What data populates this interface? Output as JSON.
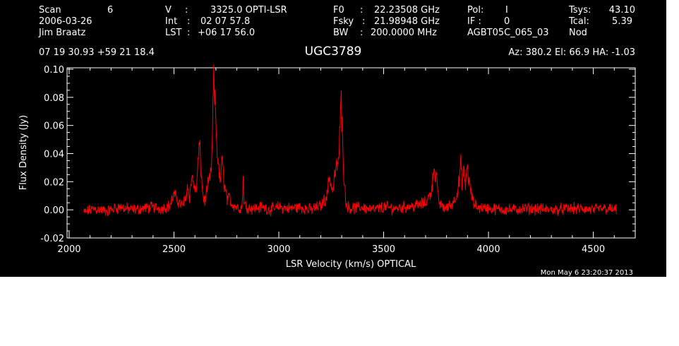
{
  "header": {
    "scan_label": "Scan",
    "scan_value": "6",
    "date": "2006-03-26",
    "observer": "Jim Braatz",
    "v_label": "V",
    "v_sep": ":",
    "v_value": "3325.0 OPTI-LSR",
    "int_label": "Int",
    "int_sep": ":",
    "int_value": "02 07 57.8",
    "lst_label": "LST",
    "lst_sep": ":",
    "lst_value": "+06 17 56.0",
    "f0_label": "F0",
    "f0_sep": ":",
    "f0_value": "22.23508 GHz",
    "fsky_label": "Fsky",
    "fsky_sep": ":",
    "fsky_value": "21.98948 GHz",
    "bw_label": "BW",
    "bw_sep": ":",
    "bw_value": "200.0000 MHz",
    "pol_label": "Pol:",
    "pol_value": "I",
    "if_label": "IF :",
    "if_value": "0",
    "project": "AGBT05C_065_03",
    "tsys_label": "Tsys:",
    "tsys_value": "43.10",
    "tcal_label": "Tcal:",
    "tcal_value": "5.39",
    "mode": "Nod",
    "coords": "07 19 30.93  +59 21 18.4",
    "source": "UGC3789",
    "az_el_ha": "Az: 380.2  El:  66.9  HA: -1.03"
  },
  "timestamp": "Mon May  6 23:20:37 2013",
  "colors": {
    "background": "#000000",
    "axes": "#ffffff",
    "trace": "#ff0000"
  },
  "chart_data": {
    "type": "line",
    "title": "",
    "xlabel": "LSR Velocity (km/s) OPTICAL",
    "ylabel": "Flux Density (Jy)",
    "xlim": [
      1990,
      4700
    ],
    "ylim": [
      -0.02,
      0.101
    ],
    "grid": false,
    "x_tick_labels": [
      "2000",
      "2500",
      "3000",
      "3500",
      "4000",
      "4500"
    ],
    "y_tick_labels": [
      "-0.02",
      "0.00",
      "0.02",
      "0.04",
      "0.06",
      "0.08",
      "0.10"
    ],
    "series": [
      {
        "color": "#ff0000",
        "x": [
          2070,
          2120,
          2180,
          2240,
          2300,
          2350,
          2400,
          2440,
          2480,
          2500,
          2520,
          2540,
          2555,
          2565,
          2575,
          2585,
          2595,
          2605,
          2615,
          2622,
          2628,
          2635,
          2645,
          2655,
          2665,
          2675,
          2680,
          2685,
          2689,
          2693,
          2698,
          2705,
          2712,
          2720,
          2728,
          2734,
          2740,
          2748,
          2756,
          2765,
          2775,
          2790,
          2810,
          2825,
          2830,
          2835,
          2850,
          2880,
          2920,
          2960,
          3000,
          3050,
          3100,
          3150,
          3200,
          3230,
          3240,
          3250,
          3258,
          3265,
          3275,
          3285,
          3292,
          3297,
          3300,
          3303,
          3307,
          3312,
          3320,
          3330,
          3350,
          3400,
          3450,
          3500,
          3550,
          3600,
          3650,
          3700,
          3725,
          3735,
          3742,
          3748,
          3752,
          3756,
          3760,
          3770,
          3780,
          3800,
          3830,
          3850,
          3860,
          3868,
          3875,
          3882,
          3890,
          3898,
          3905,
          3912,
          3920,
          3930,
          3950,
          4000,
          4100,
          4200,
          4300,
          4400,
          4500,
          4550,
          4610
        ],
        "y": [
          -0.002,
          0.001,
          -0.001,
          0.002,
          0.0,
          0.001,
          0.002,
          0.001,
          0.003,
          0.011,
          0.006,
          0.003,
          0.008,
          0.017,
          0.009,
          0.024,
          0.018,
          0.011,
          0.035,
          0.047,
          0.031,
          0.015,
          0.005,
          0.012,
          0.019,
          0.025,
          0.034,
          0.062,
          0.098,
          0.08,
          0.072,
          0.043,
          0.032,
          0.018,
          0.035,
          0.028,
          0.018,
          0.012,
          0.006,
          0.009,
          0.004,
          0.003,
          0.001,
          0.002,
          0.022,
          0.004,
          0.002,
          0.001,
          0.002,
          0.0,
          0.002,
          0.001,
          0.002,
          0.0,
          0.003,
          0.01,
          0.024,
          0.018,
          0.012,
          0.024,
          0.03,
          0.035,
          0.058,
          0.088,
          0.052,
          0.072,
          0.035,
          0.02,
          0.006,
          0.002,
          0.001,
          0.002,
          0.0,
          0.002,
          0.001,
          0.002,
          0.003,
          0.005,
          0.012,
          0.022,
          0.034,
          0.018,
          0.028,
          0.015,
          0.008,
          0.004,
          0.002,
          0.001,
          0.005,
          0.012,
          0.02,
          0.033,
          0.018,
          0.028,
          0.016,
          0.032,
          0.022,
          0.016,
          0.01,
          0.004,
          0.002,
          0.001,
          0.0,
          0.001,
          0.0,
          0.001,
          0.0,
          0.001,
          0.0
        ]
      }
    ]
  }
}
